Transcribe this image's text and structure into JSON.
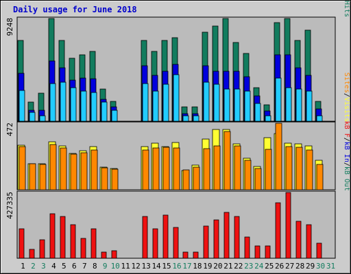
{
  "title": "Daily usage for June 2018",
  "colors": {
    "hits": "#127c5e",
    "files": "#0000dd",
    "pages": "#22ccff",
    "visits": "#ffff33",
    "sites": "#ff8800",
    "kbin": "#0000dd",
    "kbout": "#127c5e",
    "kbf": "#ee1111",
    "weekday_label": "#000000",
    "weekend_label": "#127c5e",
    "panel": "#bbbbbb"
  },
  "chart_data": [
    {
      "type": "bar",
      "panel": "hits-files-pages",
      "max_label": "9248",
      "ylim": [
        0,
        9248
      ],
      "legend": [
        {
          "text": "Pages",
          "color": "#22ccff"
        },
        {
          "text": "/",
          "color": "#000000"
        },
        {
          "text": "Files",
          "color": "#0000dd"
        },
        {
          "text": "/",
          "color": "#000000"
        },
        {
          "text": "Hits",
          "color": "#127c5e"
        }
      ],
      "series": [
        {
          "name": "Hits",
          "values": [
            7300,
            1700,
            2500,
            9248,
            7300,
            5700,
            6000,
            6300,
            2900,
            1800,
            0,
            0,
            7300,
            6300,
            7300,
            7500,
            1300,
            1300,
            8000,
            8600,
            9248,
            7100,
            6100,
            3000,
            1500,
            8900,
            9248,
            7300,
            8200,
            1800,
            0
          ]
        },
        {
          "name": "Files",
          "values": [
            4300,
            1000,
            1000,
            5400,
            4800,
            3700,
            3900,
            3800,
            2000,
            1300,
            0,
            0,
            5000,
            4100,
            4500,
            5100,
            700,
            700,
            5000,
            4500,
            4500,
            4500,
            4000,
            2300,
            900,
            6000,
            6000,
            4800,
            4100,
            1100,
            0
          ]
        },
        {
          "name": "Pages",
          "values": [
            2800,
            800,
            500,
            3400,
            3500,
            3000,
            2700,
            2600,
            1700,
            1000,
            0,
            0,
            3400,
            2700,
            3300,
            4200,
            500,
            500,
            3500,
            3300,
            2900,
            2900,
            2700,
            1600,
            500,
            3900,
            3000,
            2900,
            2700,
            500,
            0
          ]
        }
      ]
    },
    {
      "type": "bar",
      "panel": "visits-sites",
      "max_label": "472",
      "ylim": [
        0,
        472
      ],
      "legend": [
        {
          "text": "Sites",
          "color": "#ff8800"
        },
        {
          "text": "/",
          "color": "#000000"
        },
        {
          "text": "Visits",
          "color": "#ffff33"
        }
      ],
      "series": [
        {
          "name": "Visits",
          "values": [
            315,
            185,
            185,
            340,
            310,
            260,
            275,
            305,
            160,
            150,
            0,
            0,
            305,
            330,
            305,
            335,
            135,
            175,
            360,
            430,
            430,
            325,
            225,
            165,
            370,
            400,
            330,
            325,
            310,
            210,
            0
          ]
        },
        {
          "name": "Sites",
          "values": [
            305,
            185,
            180,
            320,
            295,
            255,
            265,
            280,
            155,
            145,
            0,
            0,
            280,
            295,
            300,
            295,
            140,
            160,
            290,
            310,
            415,
            310,
            210,
            150,
            285,
            472,
            305,
            300,
            280,
            180,
            0
          ]
        }
      ]
    },
    {
      "type": "bar",
      "panel": "kbf-kbin-kbout",
      "max_label": "427335",
      "ylim": [
        0,
        427335
      ],
      "legend": [
        {
          "text": "kB F",
          "color": "#ee1111"
        },
        {
          "text": "/",
          "color": "#000000"
        },
        {
          "text": "kB In",
          "color": "#0000dd"
        },
        {
          "text": "/",
          "color": "#000000"
        },
        {
          "text": "kB Out",
          "color": "#127c5e"
        }
      ],
      "series": [
        {
          "name": "kB F",
          "values": [
            190000,
            60000,
            120000,
            290000,
            270000,
            220000,
            130000,
            190000,
            40000,
            50000,
            0,
            0,
            270000,
            190000,
            280000,
            200000,
            40000,
            40000,
            210000,
            250000,
            300000,
            270000,
            140000,
            80000,
            80000,
            360000,
            427335,
            240000,
            220000,
            100000,
            0
          ]
        },
        {
          "name": "kB In",
          "values": [
            0,
            0,
            0,
            0,
            0,
            0,
            0,
            0,
            0,
            0,
            0,
            0,
            0,
            0,
            0,
            0,
            0,
            0,
            0,
            0,
            0,
            0,
            0,
            0,
            0,
            0,
            0,
            0,
            0,
            0,
            0
          ]
        },
        {
          "name": "kB Out",
          "values": [
            0,
            0,
            0,
            0,
            0,
            0,
            0,
            0,
            0,
            0,
            0,
            0,
            0,
            0,
            0,
            0,
            0,
            0,
            0,
            0,
            0,
            0,
            0,
            0,
            0,
            0,
            0,
            0,
            0,
            0,
            0
          ]
        }
      ]
    }
  ],
  "days": [
    "1",
    "2",
    "3",
    "4",
    "5",
    "6",
    "7",
    "8",
    "9",
    "10",
    "11",
    "12",
    "13",
    "14",
    "15",
    "16",
    "17",
    "18",
    "19",
    "20",
    "21",
    "22",
    "23",
    "24",
    "25",
    "26",
    "27",
    "28",
    "29",
    "30",
    "31"
  ],
  "weekend_days": [
    2,
    3,
    9,
    10,
    16,
    17,
    23,
    24,
    30,
    31
  ]
}
